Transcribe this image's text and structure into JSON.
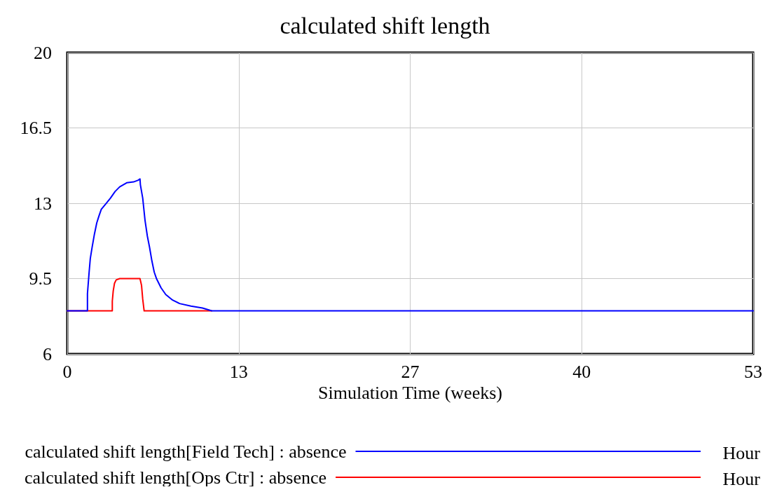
{
  "chart_data": {
    "type": "line",
    "title": "calculated shift length",
    "xlabel": "Simulation Time (weeks)",
    "xlim": [
      0,
      53
    ],
    "xticks": [
      0,
      {
        "value": 13.25,
        "label": "13"
      },
      {
        "value": 26.5,
        "label": "27"
      },
      {
        "value": 39.75,
        "label": "40"
      },
      53
    ],
    "ylim": [
      6,
      20
    ],
    "yticks": [
      6,
      9.5,
      13,
      16.5,
      20
    ],
    "grid": true,
    "legend": "bottom",
    "marker": "none",
    "line_style": "solid",
    "annotations": [
      "Hour",
      "Hour"
    ],
    "series": [
      {
        "name": "calculated shift length[Field Tech] : absence",
        "color": "#0000ff",
        "x": [
          0,
          1.56,
          1.56,
          1.69,
          1.78,
          1.92,
          2.1,
          2.28,
          2.45,
          2.63,
          2.99,
          3.34,
          3.7,
          4.05,
          4.59,
          5.12,
          5.48,
          5.62,
          5.65,
          5.83,
          6.01,
          6.19,
          6.36,
          6.54,
          6.72,
          6.9,
          7.25,
          7.61,
          8.14,
          8.68,
          9.56,
          10.45,
          11.16,
          53
        ],
        "values": [
          8,
          8,
          8.8,
          9.8,
          10.43,
          10.95,
          11.57,
          12.09,
          12.41,
          12.72,
          12.98,
          13.24,
          13.55,
          13.76,
          13.95,
          13.99,
          14.07,
          14.13,
          13.86,
          13.24,
          12.2,
          11.47,
          10.95,
          10.32,
          9.8,
          9.49,
          9.07,
          8.76,
          8.5,
          8.34,
          8.22,
          8.13,
          8,
          8
        ]
      },
      {
        "name": "calculated shift length[Ops Ctr] : absence",
        "color": "#ff0000",
        "x": [
          0,
          3.48,
          3.48,
          3.55,
          3.65,
          3.78,
          4.05,
          5.62,
          5.74,
          5.83,
          5.94,
          11.16
        ],
        "values": [
          8,
          8,
          8.45,
          8.92,
          9.28,
          9.44,
          9.5,
          9.5,
          9.18,
          8.55,
          8,
          8
        ]
      }
    ]
  }
}
